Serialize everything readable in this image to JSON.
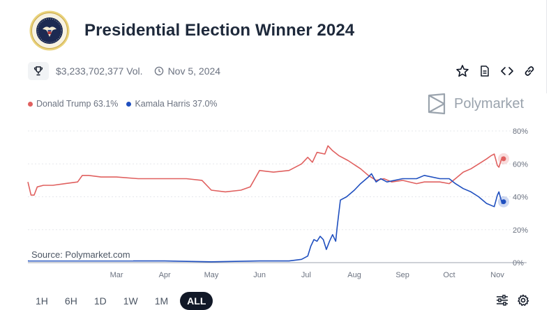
{
  "market": {
    "title": "Presidential Election Winner 2024",
    "volume": "$3,233,702,377 Vol.",
    "date": "Nov 5, 2024"
  },
  "icons": {
    "seal": "presidential-seal-icon",
    "trophy": "trophy-icon",
    "clock": "clock-icon",
    "star": "star-icon",
    "document": "document-icon",
    "embed": "code-icon",
    "link": "link-icon",
    "brand": "polymarket-logo-icon",
    "filters": "sliders-icon",
    "settings": "gear-icon"
  },
  "brand": {
    "name": "Polymarket"
  },
  "legend": [
    {
      "label": "Donald Trump 63.1%",
      "color": "#e0605f"
    },
    {
      "label": "Kamala Harris 37.0%",
      "color": "#1f4fbf"
    }
  ],
  "source_label": "Source: Polymarket.com",
  "range_buttons": [
    {
      "label": "1H",
      "active": false
    },
    {
      "label": "6H",
      "active": false
    },
    {
      "label": "1D",
      "active": false
    },
    {
      "label": "1W",
      "active": false
    },
    {
      "label": "1M",
      "active": false
    },
    {
      "label": "ALL",
      "active": true
    }
  ],
  "chart_data": {
    "type": "line",
    "x_ticks": [
      "Mar",
      "Apr",
      "May",
      "Jun",
      "Jul",
      "Aug",
      "Sep",
      "Oct",
      "Nov"
    ],
    "y_ticks": [
      "0%",
      "20%",
      "40%",
      "60%",
      "80%"
    ],
    "ylim": [
      0,
      80
    ],
    "y_unit": "%",
    "grid": "horizontal",
    "series": [
      {
        "name": "Donald Trump",
        "color": "#e0605f",
        "points": [
          [
            "Jan 4",
            49
          ],
          [
            "Jan 6",
            41
          ],
          [
            "Jan 8",
            41
          ],
          [
            "Jan 10",
            46
          ],
          [
            "Jan 14",
            47
          ],
          [
            "Jan 20",
            47
          ],
          [
            "Jan 28",
            48
          ],
          [
            "Feb 5",
            49
          ],
          [
            "Feb 8",
            53
          ],
          [
            "Feb 12",
            53
          ],
          [
            "Feb 20",
            52
          ],
          [
            "Mar 1",
            52
          ],
          [
            "Mar 15",
            51
          ],
          [
            "Apr 1",
            51
          ],
          [
            "Apr 15",
            51
          ],
          [
            "Apr 25",
            50
          ],
          [
            "May 1",
            44
          ],
          [
            "May 10",
            43
          ],
          [
            "May 20",
            44
          ],
          [
            "May 26",
            46
          ],
          [
            "Jun 1",
            56
          ],
          [
            "Jun 10",
            55
          ],
          [
            "Jun 20",
            56
          ],
          [
            "Jun 28",
            60
          ],
          [
            "Jul 2",
            64
          ],
          [
            "Jul 5",
            61
          ],
          [
            "Jul 8",
            67
          ],
          [
            "Jul 13",
            66
          ],
          [
            "Jul 15",
            71
          ],
          [
            "Jul 18",
            68
          ],
          [
            "Jul 22",
            65
          ],
          [
            "Jul 28",
            62
          ],
          [
            "Aug 5",
            57
          ],
          [
            "Aug 10",
            53
          ],
          [
            "Aug 15",
            50
          ],
          [
            "Aug 20",
            51
          ],
          [
            "Aug 25",
            49
          ],
          [
            "Sep 1",
            50
          ],
          [
            "Sep 10",
            48
          ],
          [
            "Sep 15",
            49
          ],
          [
            "Sep 25",
            49
          ],
          [
            "Oct 1",
            48
          ],
          [
            "Oct 5",
            51
          ],
          [
            "Oct 10",
            55
          ],
          [
            "Oct 15",
            57
          ],
          [
            "Oct 20",
            60
          ],
          [
            "Oct 25",
            63
          ],
          [
            "Oct 28",
            65
          ],
          [
            "Oct 30",
            66
          ],
          [
            "Nov 1",
            59
          ],
          [
            "Nov 2",
            58
          ],
          [
            "Nov 4",
            64
          ],
          [
            "Nov 5",
            63.1
          ]
        ]
      },
      {
        "name": "Kamala Harris",
        "color": "#1f4fbf",
        "points": [
          [
            "Jan 4",
            1
          ],
          [
            "Feb 1",
            1
          ],
          [
            "Mar 1",
            1
          ],
          [
            "Apr 1",
            1
          ],
          [
            "May 1",
            0.5
          ],
          [
            "Jun 1",
            1
          ],
          [
            "Jun 20",
            1
          ],
          [
            "Jun 28",
            2
          ],
          [
            "Jul 2",
            4
          ],
          [
            "Jul 4",
            10
          ],
          [
            "Jul 6",
            14
          ],
          [
            "Jul 8",
            13
          ],
          [
            "Jul 10",
            16
          ],
          [
            "Jul 12",
            14
          ],
          [
            "Jul 14",
            8
          ],
          [
            "Jul 16",
            13
          ],
          [
            "Jul 18",
            17
          ],
          [
            "Jul 20",
            13
          ],
          [
            "Jul 21",
            22
          ],
          [
            "Jul 23",
            38
          ],
          [
            "Jul 27",
            40
          ],
          [
            "Aug 1",
            44
          ],
          [
            "Aug 5",
            48
          ],
          [
            "Aug 10",
            52
          ],
          [
            "Aug 12",
            54
          ],
          [
            "Aug 15",
            49
          ],
          [
            "Aug 18",
            51
          ],
          [
            "Aug 22",
            49
          ],
          [
            "Sep 1",
            51
          ],
          [
            "Sep 10",
            51
          ],
          [
            "Sep 15",
            53
          ],
          [
            "Sep 25",
            51
          ],
          [
            "Oct 1",
            51
          ],
          [
            "Oct 5",
            48
          ],
          [
            "Oct 10",
            45
          ],
          [
            "Oct 15",
            43
          ],
          [
            "Oct 20",
            40
          ],
          [
            "Oct 25",
            36
          ],
          [
            "Oct 30",
            34
          ],
          [
            "Nov 1",
            41
          ],
          [
            "Nov 2",
            43
          ],
          [
            "Nov 4",
            36
          ],
          [
            "Nov 5",
            37.0
          ]
        ]
      }
    ]
  }
}
